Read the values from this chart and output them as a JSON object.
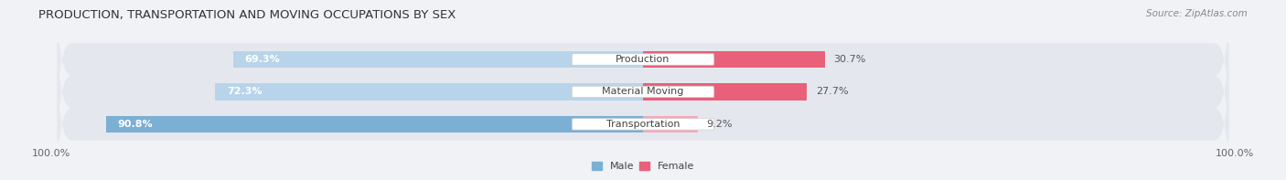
{
  "title": "PRODUCTION, TRANSPORTATION AND MOVING OCCUPATIONS BY SEX",
  "source_text": "Source: ZipAtlas.com",
  "categories": [
    "Transportation",
    "Material Moving",
    "Production"
  ],
  "male_values": [
    90.8,
    72.3,
    69.3
  ],
  "female_values": [
    9.2,
    27.7,
    30.7
  ],
  "male_color": "#7bafd4",
  "male_color_light": "#b8d4ea",
  "female_color_strong": "#e8607a",
  "female_color_light": "#f4aabb",
  "male_label": "Male",
  "female_label": "Female",
  "bg_color": "#f0f2f5",
  "row_bg_color": "#e4e8ee",
  "title_fontsize": 9.5,
  "source_fontsize": 7.5,
  "label_fontsize": 8,
  "tick_fontsize": 8,
  "bar_height": 0.52,
  "category_label_fontsize": 8
}
